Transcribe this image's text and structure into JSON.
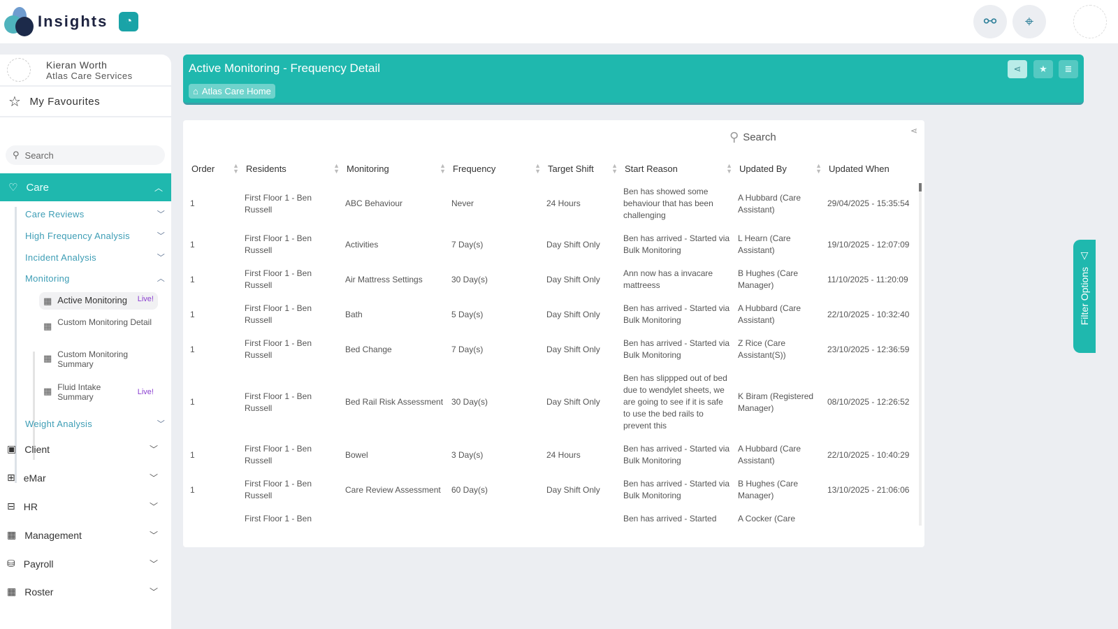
{
  "app": {
    "name": "Insights"
  },
  "user": {
    "name": "Kieran Worth",
    "org": "Atlas Care Services"
  },
  "sidebar": {
    "favourites": "My Favourites",
    "search_placeholder": "Search",
    "care": {
      "label": "Care",
      "items": [
        "Care Reviews",
        "High Frequency Analysis",
        "Incident Analysis",
        "Monitoring",
        "Weight Analysis"
      ],
      "monitoring_items": [
        {
          "label": "Active Monitoring",
          "badge": "Live!"
        },
        {
          "label": "Custom Monitoring Detail"
        },
        {
          "label": "Custom Monitoring Summary"
        },
        {
          "label": "Fluid Intake Summary",
          "badge": "Live!"
        }
      ]
    },
    "modules": [
      "Client",
      "eMar",
      "HR",
      "Management",
      "Payroll",
      "Roster"
    ]
  },
  "header": {
    "title": "Active Monitoring - Frequency Detail",
    "breadcrumb": "Atlas Care Home"
  },
  "table": {
    "search_placeholder": "Search",
    "columns": [
      "Order",
      "Residents",
      "Monitoring",
      "Frequency",
      "Target Shift",
      "Start Reason",
      "Updated By",
      "Updated When"
    ],
    "rows": [
      [
        "1",
        "First Floor 1 - Ben Russell",
        "ABC Behaviour",
        "Never",
        "24 Hours",
        "Ben has showed some behaviour that has been challenging",
        "A Hubbard (Care Assistant)",
        "29/04/2025 - 15:35:54"
      ],
      [
        "1",
        "First Floor 1 - Ben Russell",
        "Activities",
        "7 Day(s)",
        "Day Shift Only",
        "Ben has arrived - Started via Bulk Monitoring",
        "L Hearn (Care Assistant)",
        "19/10/2025 - 12:07:09"
      ],
      [
        "1",
        "First Floor 1 - Ben Russell",
        "Air Mattress Settings",
        "30 Day(s)",
        "Day Shift Only",
        "Ann now has a invacare mattreess",
        "B Hughes (Care Manager)",
        "11/10/2025 - 11:20:09"
      ],
      [
        "1",
        "First Floor 1 - Ben Russell",
        "Bath",
        "5 Day(s)",
        "Day Shift Only",
        "Ben has arrived - Started via Bulk Monitoring",
        "A Hubbard (Care Assistant)",
        "22/10/2025 - 10:32:40"
      ],
      [
        "1",
        "First Floor 1 - Ben Russell",
        "Bed Change",
        "7 Day(s)",
        "Day Shift Only",
        "Ben has arrived - Started via Bulk Monitoring",
        "Z Rice (Care Assistant(S))",
        "23/10/2025 - 12:36:59"
      ],
      [
        "1",
        "First Floor 1 - Ben Russell",
        "Bed Rail Risk Assessment",
        "30 Day(s)",
        "Day Shift Only",
        "Ben has slippped out of bed due to wendylet sheets, we are going to see if it is safe to use the bed rails to prevent this",
        "K Biram (Registered Manager)",
        "08/10/2025 - 12:26:52"
      ],
      [
        "1",
        "First Floor 1 - Ben Russell",
        "Bowel",
        "3 Day(s)",
        "24 Hours",
        "Ben has arrived - Started via Bulk Monitoring",
        "A Hubbard (Care Assistant)",
        "22/10/2025 - 10:40:29"
      ],
      [
        "1",
        "First Floor 1 - Ben Russell",
        "Care Review Assessment",
        "60 Day(s)",
        "Day Shift Only",
        "Ben has arrived - Started via Bulk Monitoring",
        "B Hughes (Care Manager)",
        "13/10/2025 - 21:06:06"
      ],
      [
        "",
        "First Floor 1 - Ben",
        "",
        "",
        "",
        "Ben has arrived - Started",
        "A Cocker (Care",
        ""
      ]
    ]
  },
  "filter_tab": "Filter Options",
  "colors": {
    "accent": "#1fb8ae",
    "live": "#8a3fd0",
    "link": "#3d9db5"
  }
}
